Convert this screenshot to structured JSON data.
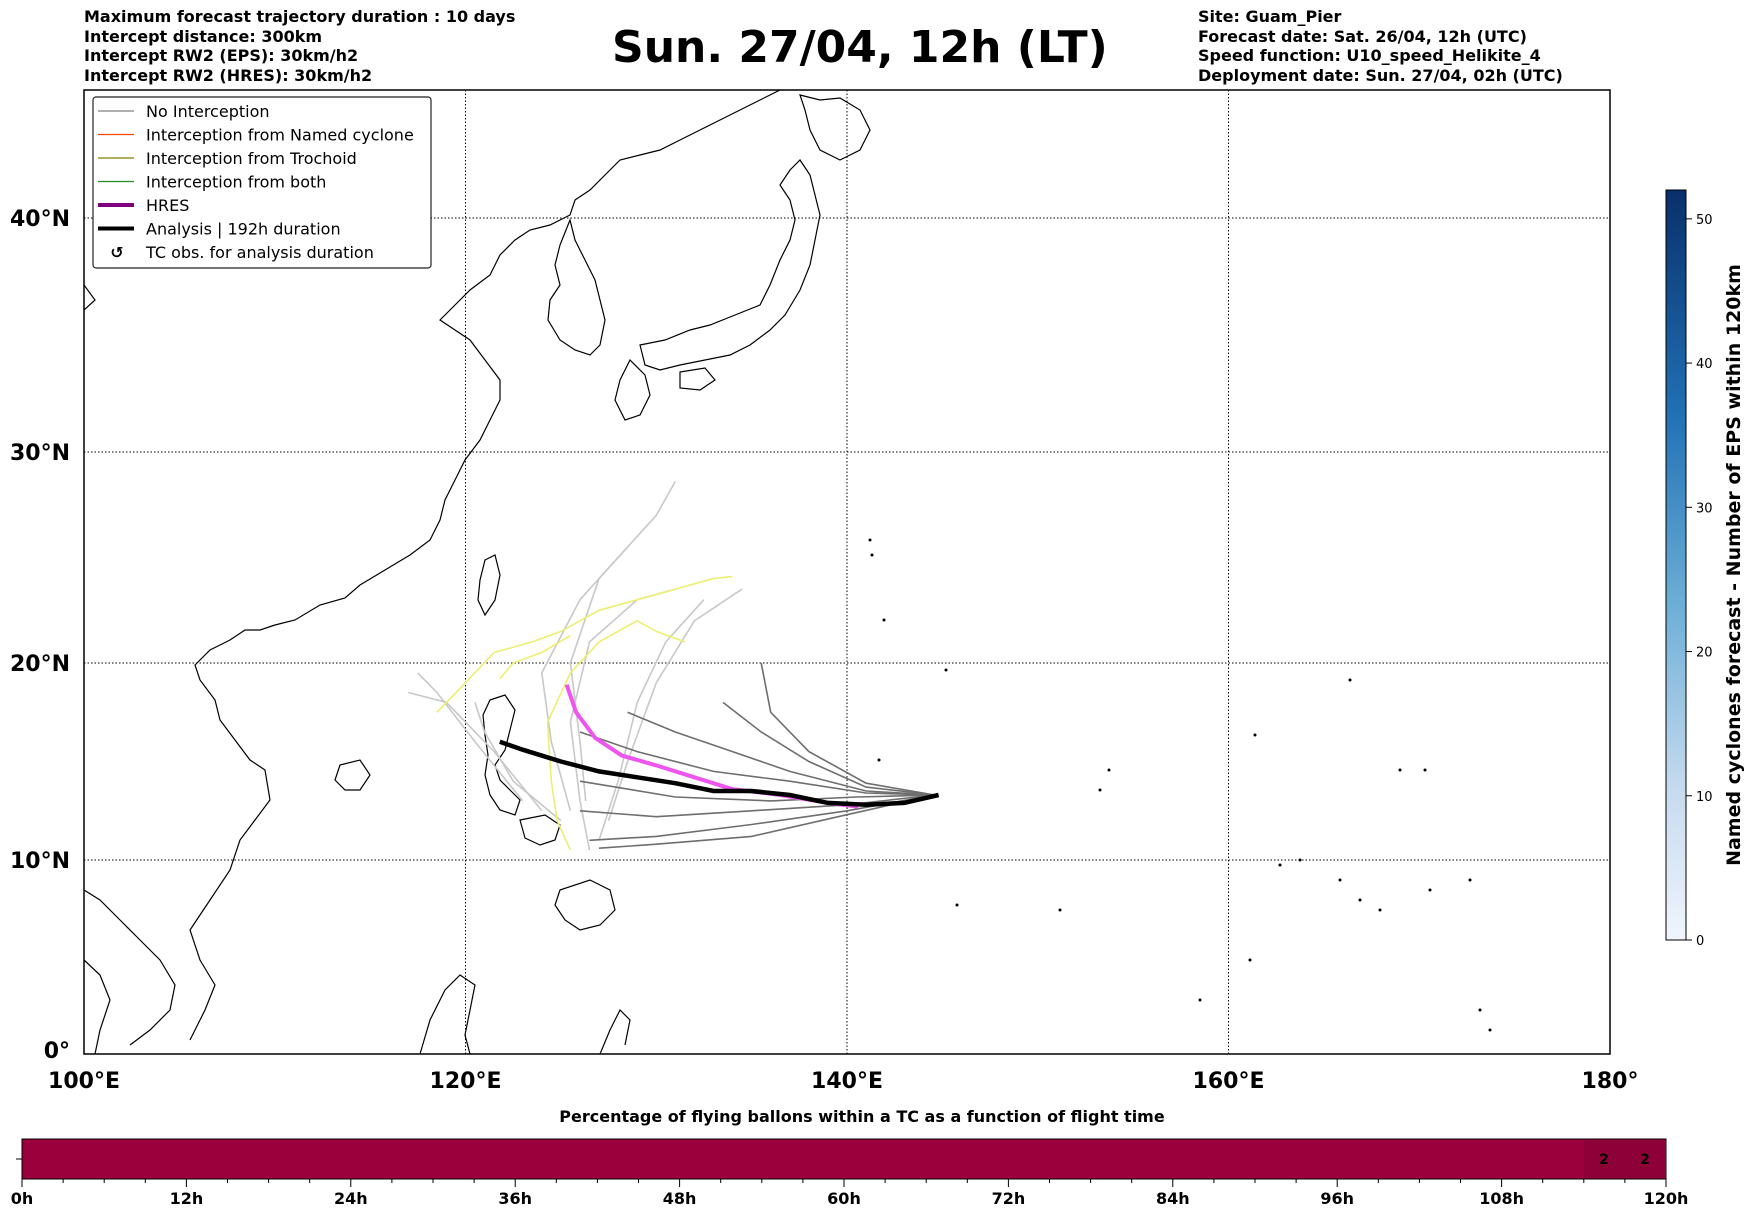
{
  "header_left": [
    "Maximum forecast trajectory duration : 10 days",
    "Intercept distance: 300km",
    "Intercept RW2 (EPS):  30km/h2",
    "Intercept RW2 (HRES): 30km/h2"
  ],
  "title": "Sun. 27/04, 12h (LT)",
  "header_right": [
    "Site: Guam_Pier",
    "Forecast date: Sat. 26/04, 12h (UTC)",
    "Speed function: U10_speed_Helikite_4",
    "Deployment date: Sun. 27/04, 02h (UTC)"
  ],
  "legend": [
    {
      "label": "No Interception",
      "color": "#808080",
      "style": "thin"
    },
    {
      "label": "Interception from Named cyclone",
      "color": "#ff4500",
      "style": "thin"
    },
    {
      "label": "Interception from Trochoid",
      "color": "#808000",
      "style": "thin"
    },
    {
      "label": "Interception from both",
      "color": "#228b22",
      "style": "thin"
    },
    {
      "label": "HRES",
      "color": "#800080",
      "style": "thick"
    },
    {
      "label": "Analysis | 192h duration",
      "color": "#000000",
      "style": "thick"
    },
    {
      "label": "TC obs. for analysis duration",
      "color": "#000000",
      "style": "symbol"
    }
  ],
  "map": {
    "lon_labels": [
      "100°E",
      "120°E",
      "140°E",
      "160°E",
      "180°"
    ],
    "lat_labels": [
      "0°",
      "10°N",
      "20°N",
      "30°N",
      "40°N"
    ],
    "lon_range": [
      100,
      180
    ],
    "lat_range": [
      0,
      45
    ]
  },
  "colorbar": {
    "label": "Named cyclones forecast - Number of EPS within 120km",
    "ticks": [
      "0",
      "10",
      "20",
      "30",
      "40",
      "50"
    ],
    "range": [
      0,
      52
    ]
  },
  "bottom_bar": {
    "title": "Percentage of flying ballons within a TC as a function of flight time",
    "ticks": [
      "0h",
      "12h",
      "24h",
      "36h",
      "48h",
      "60h",
      "72h",
      "84h",
      "96h",
      "108h",
      "120h"
    ],
    "cell_values": [
      "2",
      "2"
    ],
    "bar_color": "#9b003c"
  },
  "chart_data": {
    "type": "map",
    "hres_track": [
      [
        125.3,
        18.9
      ],
      [
        125.8,
        17.5
      ],
      [
        126.8,
        16.2
      ],
      [
        128.2,
        15.3
      ],
      [
        130,
        14.8
      ],
      [
        132,
        14.2
      ],
      [
        134,
        13.6
      ],
      [
        136.5,
        13.3
      ],
      [
        139,
        12.9
      ],
      [
        140.6,
        12.7
      ]
    ],
    "analysis_track": [
      [
        121.8,
        16.0
      ],
      [
        123,
        15.6
      ],
      [
        125,
        15.0
      ],
      [
        127,
        14.5
      ],
      [
        129,
        14.2
      ],
      [
        131,
        13.9
      ],
      [
        133,
        13.5
      ],
      [
        135,
        13.5
      ],
      [
        137,
        13.3
      ],
      [
        139,
        12.9
      ],
      [
        141,
        12.8
      ],
      [
        143,
        12.9
      ],
      [
        144.8,
        13.3
      ]
    ],
    "eps_dark_tracks": [
      [
        [
          144.6,
          13.3
        ],
        [
          141,
          13.5
        ],
        [
          137,
          14.5
        ],
        [
          134,
          15.5
        ],
        [
          131,
          16.5
        ],
        [
          128.5,
          17.5
        ]
      ],
      [
        [
          144.6,
          13.3
        ],
        [
          141,
          13.7
        ],
        [
          138,
          15
        ],
        [
          135.5,
          16.5
        ],
        [
          133.5,
          18
        ]
      ],
      [
        [
          144.6,
          13.3
        ],
        [
          141,
          13.4
        ],
        [
          137,
          14
        ],
        [
          133,
          14.5
        ],
        [
          129,
          15.5
        ],
        [
          126,
          16.5
        ]
      ],
      [
        [
          144.6,
          13.3
        ],
        [
          140,
          12.8
        ],
        [
          135,
          12.5
        ],
        [
          130,
          12.2
        ],
        [
          126,
          12.5
        ]
      ],
      [
        [
          144.6,
          13.3
        ],
        [
          140,
          12.5
        ],
        [
          135,
          11.8
        ],
        [
          130,
          11.2
        ],
        [
          126.5,
          11
        ]
      ],
      [
        [
          144.6,
          13.3
        ],
        [
          140.5,
          13.2
        ],
        [
          136,
          13
        ],
        [
          131,
          13.2
        ],
        [
          126,
          14
        ]
      ],
      [
        [
          144.6,
          13.3
        ],
        [
          141,
          13.9
        ],
        [
          138,
          15.5
        ],
        [
          136,
          17.5
        ],
        [
          135.5,
          20
        ]
      ],
      [
        [
          144.6,
          13.3
        ],
        [
          140,
          12.3
        ],
        [
          135,
          11.2
        ],
        [
          130,
          10.8
        ],
        [
          127,
          10.6
        ]
      ]
    ],
    "eps_light_tracks": [
      [
        [
          126.3,
          13
        ],
        [
          126,
          16
        ],
        [
          125.5,
          20
        ],
        [
          127,
          24
        ],
        [
          130,
          27
        ],
        [
          131,
          28.6
        ]
      ],
      [
        [
          125.5,
          12.5
        ],
        [
          124.5,
          16
        ],
        [
          124,
          19.5
        ],
        [
          126,
          23
        ],
        [
          128.5,
          25.5
        ]
      ],
      [
        [
          123,
          13
        ],
        [
          120.5,
          16
        ],
        [
          118.5,
          18.5
        ],
        [
          117.5,
          19.5
        ]
      ],
      [
        [
          124,
          12.5
        ],
        [
          121.5,
          15.5
        ],
        [
          119,
          18
        ],
        [
          117,
          18.5
        ]
      ],
      [
        [
          127.5,
          12
        ],
        [
          128.5,
          15
        ],
        [
          130,
          19
        ],
        [
          132,
          22
        ],
        [
          134.5,
          23.5
        ]
      ],
      [
        [
          126.5,
          10.5
        ],
        [
          126,
          13
        ],
        [
          125.5,
          17
        ],
        [
          126.5,
          21
        ],
        [
          129,
          23
        ],
        [
          131,
          23.5
        ]
      ],
      [
        [
          125,
          12
        ],
        [
          122.5,
          14
        ],
        [
          121,
          16.5
        ],
        [
          120.5,
          18
        ]
      ],
      [
        [
          127,
          11
        ],
        [
          128,
          14
        ],
        [
          129,
          18
        ],
        [
          130.5,
          21
        ],
        [
          132.5,
          23
        ]
      ]
    ],
    "yellow_tracks": [
      [
        [
          118.5,
          17.5
        ],
        [
          120,
          19
        ],
        [
          121.5,
          20.5
        ],
        [
          123.5,
          21
        ],
        [
          125,
          21.5
        ],
        [
          127,
          22.5
        ],
        [
          129,
          23
        ],
        [
          131,
          23.5
        ],
        [
          133,
          24
        ],
        [
          134,
          24.1
        ]
      ],
      [
        [
          125.5,
          10.5
        ],
        [
          124.8,
          12
        ],
        [
          124.5,
          14
        ],
        [
          124.3,
          17
        ],
        [
          125.5,
          19.5
        ],
        [
          127,
          21
        ],
        [
          129,
          22
        ],
        [
          130,
          21.5
        ],
        [
          131.5,
          21
        ]
      ],
      [
        [
          121.8,
          19.2
        ],
        [
          122.5,
          20
        ],
        [
          124,
          20.5
        ],
        [
          125.5,
          21.3
        ]
      ]
    ]
  }
}
